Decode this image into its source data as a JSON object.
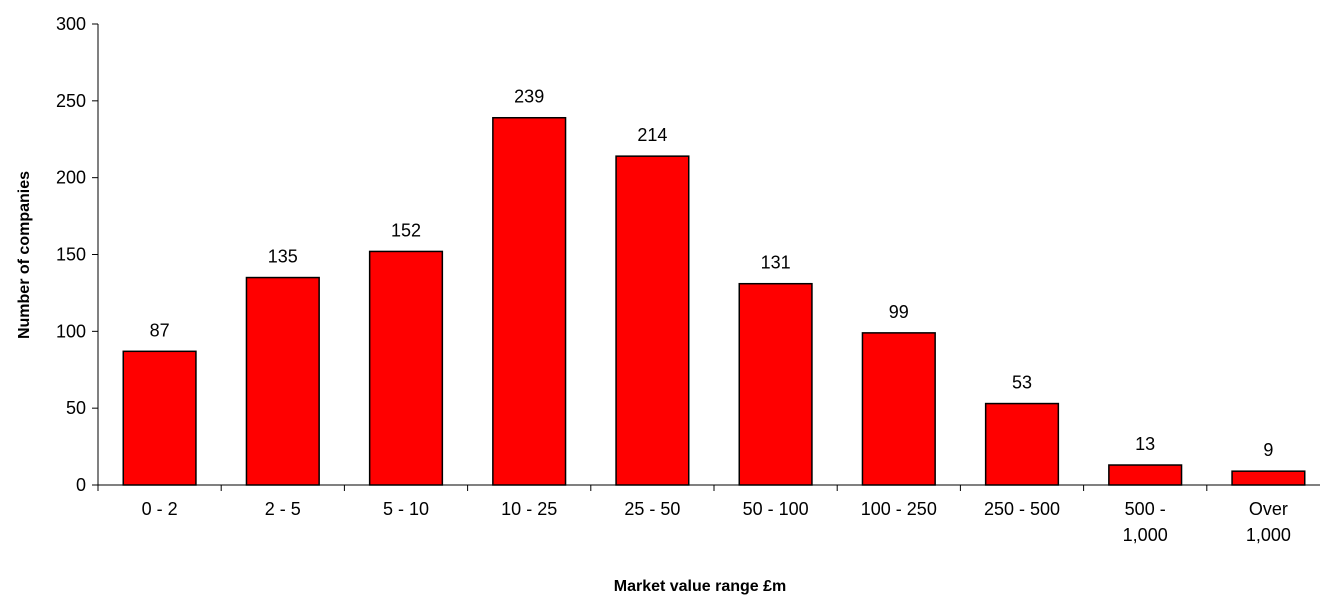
{
  "chart_data": {
    "type": "bar",
    "categories": [
      [
        "0 - 2"
      ],
      [
        "2 - 5"
      ],
      [
        "5 - 10"
      ],
      [
        "10 - 25"
      ],
      [
        "25 - 50"
      ],
      [
        "50 - 100"
      ],
      [
        "100 - 250"
      ],
      [
        "250 - 500"
      ],
      [
        "500 -",
        "1,000"
      ],
      [
        "Over",
        "1,000"
      ]
    ],
    "values": [
      87,
      135,
      152,
      239,
      214,
      131,
      99,
      53,
      13,
      9
    ],
    "data_labels": [
      "87",
      "135",
      "152",
      "239",
      "214",
      "131",
      "99",
      "53",
      "13",
      "9"
    ],
    "yticks": [
      "0",
      "50",
      "100",
      "150",
      "200",
      "250",
      "300"
    ],
    "ylim": [
      0,
      300
    ],
    "xlabel": "Market value range £m",
    "ylabel": "Number of companies",
    "title": "",
    "grid": false,
    "legend": "none",
    "bar_color": "#ff0000",
    "bar_edge_color": "#000000"
  }
}
